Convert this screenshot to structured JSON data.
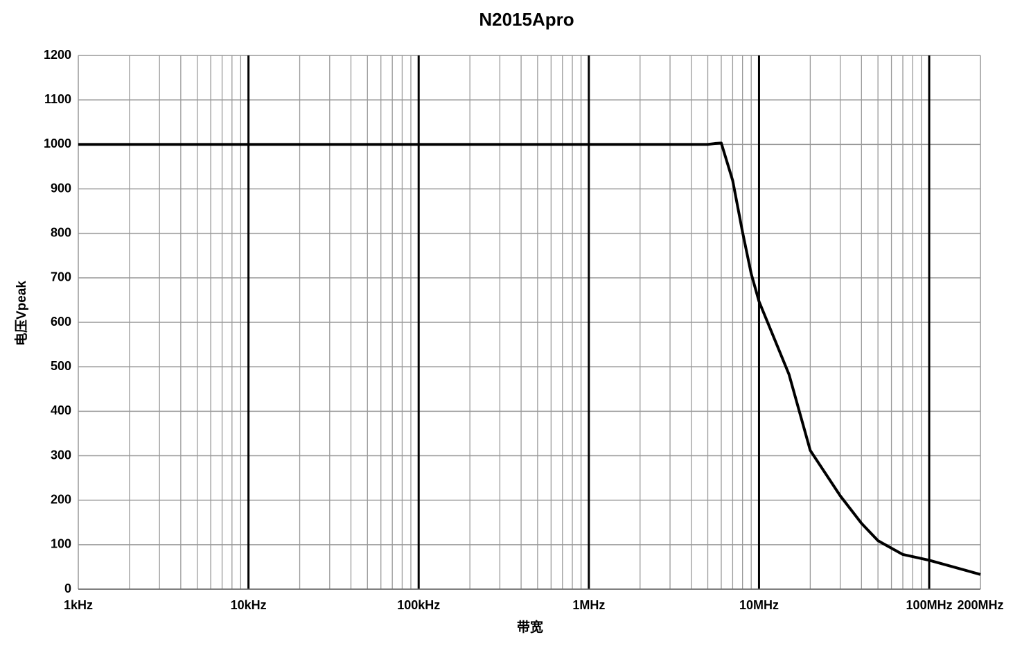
{
  "chart_data": {
    "type": "line",
    "title": "N2015Apro",
    "x_label": "带宽",
    "y_label": "电压Vpeak",
    "x_scale": "log",
    "x": [
      1000,
      5000000,
      5500000,
      6000000,
      7000000,
      8000000,
      9000000,
      10000000,
      15000000,
      20000000,
      30000000,
      40000000,
      50000000,
      70000000,
      100000000,
      200000000
    ],
    "values": [
      1000,
      1000,
      1002,
      1003,
      919,
      803,
      709,
      647,
      483,
      312,
      210,
      148,
      109,
      78,
      65,
      33
    ],
    "color": "#000000",
    "xlim": [
      1000,
      200000000
    ],
    "xticks": [
      {
        "value": 1000,
        "label": "1kHz"
      },
      {
        "value": 10000,
        "label": "10kHz"
      },
      {
        "value": 100000,
        "label": "100kHz"
      },
      {
        "value": 1000000,
        "label": "1MHz"
      },
      {
        "value": 10000000,
        "label": "10MHz"
      },
      {
        "value": 100000000,
        "label": "100MHz"
      },
      {
        "value": 200000000,
        "label": "200MHz"
      }
    ],
    "ylim": [
      0,
      1200
    ],
    "yticks": [
      0,
      100,
      200,
      300,
      400,
      500,
      600,
      700,
      800,
      900,
      1000,
      1100,
      1200
    ],
    "grid": true
  }
}
